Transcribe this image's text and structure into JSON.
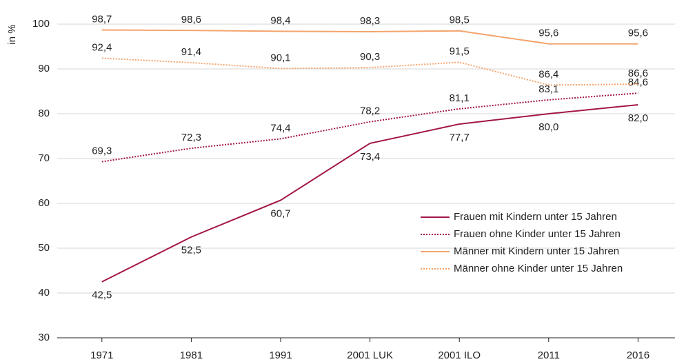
{
  "chart_data": {
    "type": "line",
    "y_label": "in %",
    "categories": [
      "1971",
      "1981",
      "1991",
      "2001 LUK",
      "2001 ILO",
      "2011",
      "2016"
    ],
    "ylim": [
      30,
      100
    ],
    "yticks": [
      30,
      40,
      50,
      60,
      70,
      80,
      90,
      100
    ],
    "grid": true,
    "legend": "lower right",
    "series": [
      {
        "name": "Frauen mit Kindern unter 15 Jahren",
        "color": "#a3164a",
        "dash": "solid",
        "label_position": "below",
        "values": [
          42.5,
          52.5,
          60.7,
          73.4,
          77.7,
          80.0,
          82.0
        ],
        "value_labels": [
          "42,5",
          "52,5",
          "60,7",
          "73,4",
          "77,7",
          "80,0",
          "82,0"
        ]
      },
      {
        "name": "Frauen ohne Kinder unter 15 Jahren",
        "color": "#a3164a",
        "dash": "dotted",
        "label_position": "above",
        "values": [
          69.3,
          72.3,
          74.4,
          78.2,
          81.1,
          83.1,
          84.6
        ],
        "value_labels": [
          "69,3",
          "72,3",
          "74,4",
          "78,2",
          "81,1",
          "83,1",
          "84,6"
        ]
      },
      {
        "name": "Männer mit Kindern unter 15 Jahren",
        "color": "#f4a46c",
        "dash": "solid",
        "label_position": "above",
        "values": [
          98.7,
          98.6,
          98.4,
          98.3,
          98.5,
          95.6,
          95.6
        ],
        "value_labels": [
          "98,7",
          "98,6",
          "98,4",
          "98,3",
          "98,5",
          "95,6",
          "95,6"
        ]
      },
      {
        "name": "Männer ohne Kinder unter 15 Jahren",
        "color": "#f4a46c",
        "dash": "dotted",
        "label_position": "above",
        "values": [
          92.4,
          91.4,
          90.1,
          90.3,
          91.5,
          86.4,
          86.6
        ],
        "value_labels": [
          "92,4",
          "91,4",
          "90,1",
          "90,3",
          "91,5",
          "86,4",
          "86,6"
        ]
      }
    ]
  }
}
